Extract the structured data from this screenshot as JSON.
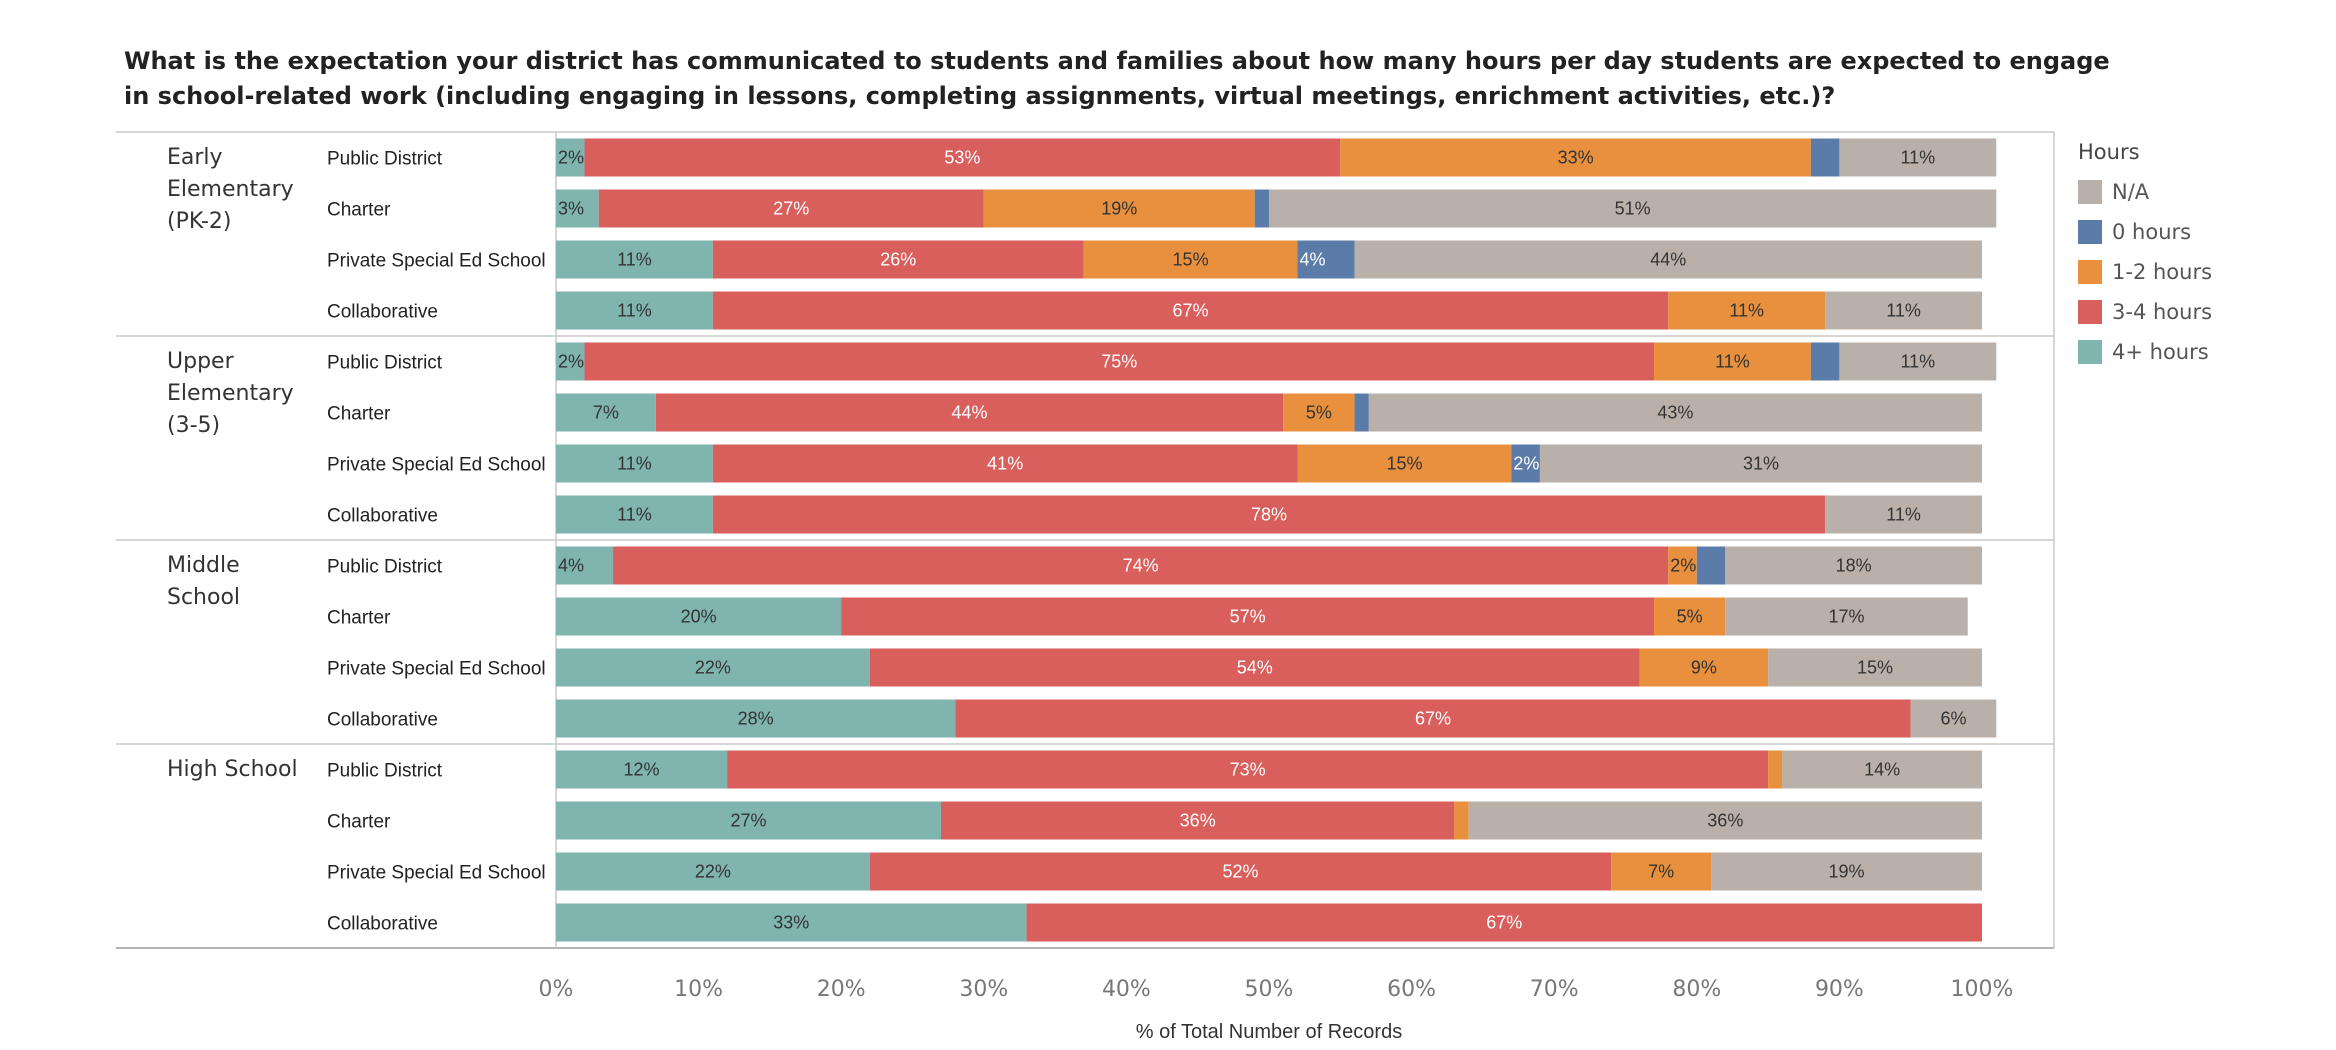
{
  "chart_data": {
    "type": "bar",
    "orientation": "horizontal",
    "stacked": true,
    "title": "What is the expectation your district has communicated to students and families about how many hours per day students are expected to engage in school-related work (including engaging in lessons, completing assignments, virtual meetings, enrichment activities, etc.)?",
    "xlabel": "% of Total Number of Records",
    "xlim": [
      0,
      100
    ],
    "ticks": [
      "0%",
      "10%",
      "20%",
      "30%",
      "40%",
      "50%",
      "60%",
      "70%",
      "80%",
      "90%",
      "100%"
    ],
    "legend_title": "Hours",
    "legend_position": "right",
    "legend": [
      {
        "name": "N/A",
        "color": "#b9b0aa"
      },
      {
        "name": "0 hours",
        "color": "#5b7ca8"
      },
      {
        "name": "1-2 hours",
        "color": "#e8903d"
      },
      {
        "name": "3-4 hours",
        "color": "#d85f5c"
      },
      {
        "name": "4+ hours",
        "color": "#7fb5ae"
      }
    ],
    "stack_order": [
      "4+ hours",
      "3-4 hours",
      "1-2 hours",
      "0 hours",
      "N/A"
    ],
    "groups": [
      {
        "label": "Early Elementary (PK-2)",
        "rows": [
          {
            "category": "Public District",
            "values": [
              2,
              53,
              33,
              2,
              11
            ],
            "labels": [
              "2%",
              "53%",
              "33%",
              "",
              "11%"
            ]
          },
          {
            "category": "Charter",
            "values": [
              3,
              27,
              19,
              1,
              51
            ],
            "labels": [
              "3%",
              "27%",
              "19%",
              "",
              "51%"
            ]
          },
          {
            "category": "Private Special Ed School",
            "values": [
              11,
              26,
              15,
              4,
              44
            ],
            "labels": [
              "11%",
              "26%",
              "15%",
              "4%",
              "44%"
            ]
          },
          {
            "category": "Collaborative",
            "values": [
              11,
              67,
              11,
              0,
              11
            ],
            "labels": [
              "11%",
              "67%",
              "11%",
              "",
              "11%"
            ]
          }
        ]
      },
      {
        "label": "Upper Elementary (3-5)",
        "rows": [
          {
            "category": "Public District",
            "values": [
              2,
              75,
              11,
              2,
              11
            ],
            "labels": [
              "2%",
              "75%",
              "11%",
              "",
              "11%"
            ]
          },
          {
            "category": "Charter",
            "values": [
              7,
              44,
              5,
              1,
              43
            ],
            "labels": [
              "7%",
              "44%",
              "5%",
              "",
              "43%"
            ]
          },
          {
            "category": "Private Special Ed School",
            "values": [
              11,
              41,
              15,
              2,
              31
            ],
            "labels": [
              "11%",
              "41%",
              "15%",
              "2%",
              "31%"
            ]
          },
          {
            "category": "Collaborative",
            "values": [
              11,
              78,
              0,
              0,
              11
            ],
            "labels": [
              "11%",
              "78%",
              "",
              "",
              "11%"
            ]
          }
        ]
      },
      {
        "label": "Middle School",
        "rows": [
          {
            "category": "Public District",
            "values": [
              4,
              74,
              2,
              2,
              18
            ],
            "labels": [
              "4%",
              "74%",
              "2%",
              "",
              "18%"
            ]
          },
          {
            "category": "Charter",
            "values": [
              20,
              57,
              5,
              0,
              17
            ],
            "labels": [
              "20%",
              "57%",
              "5%",
              "",
              "17%"
            ]
          },
          {
            "category": "Private Special Ed School",
            "values": [
              22,
              54,
              9,
              0,
              15
            ],
            "labels": [
              "22%",
              "54%",
              "9%",
              "",
              "15%"
            ]
          },
          {
            "category": "Collaborative",
            "values": [
              28,
              67,
              0,
              0,
              6
            ],
            "labels": [
              "28%",
              "67%",
              "",
              "",
              "6%"
            ]
          }
        ]
      },
      {
        "label": "High School",
        "rows": [
          {
            "category": "Public District",
            "values": [
              12,
              73,
              1,
              0,
              14
            ],
            "labels": [
              "12%",
              "73%",
              "",
              "",
              "14%"
            ]
          },
          {
            "category": "Charter",
            "values": [
              27,
              36,
              1,
              0,
              36
            ],
            "labels": [
              "27%",
              "36%",
              "",
              "",
              "36%"
            ]
          },
          {
            "category": "Private Special Ed School",
            "values": [
              22,
              52,
              7,
              0,
              19
            ],
            "labels": [
              "22%",
              "52%",
              "7%",
              "",
              "19%"
            ]
          },
          {
            "category": "Collaborative",
            "values": [
              33,
              67,
              0,
              0,
              0
            ],
            "labels": [
              "33%",
              "67%",
              "",
              "",
              ""
            ]
          }
        ]
      }
    ]
  }
}
